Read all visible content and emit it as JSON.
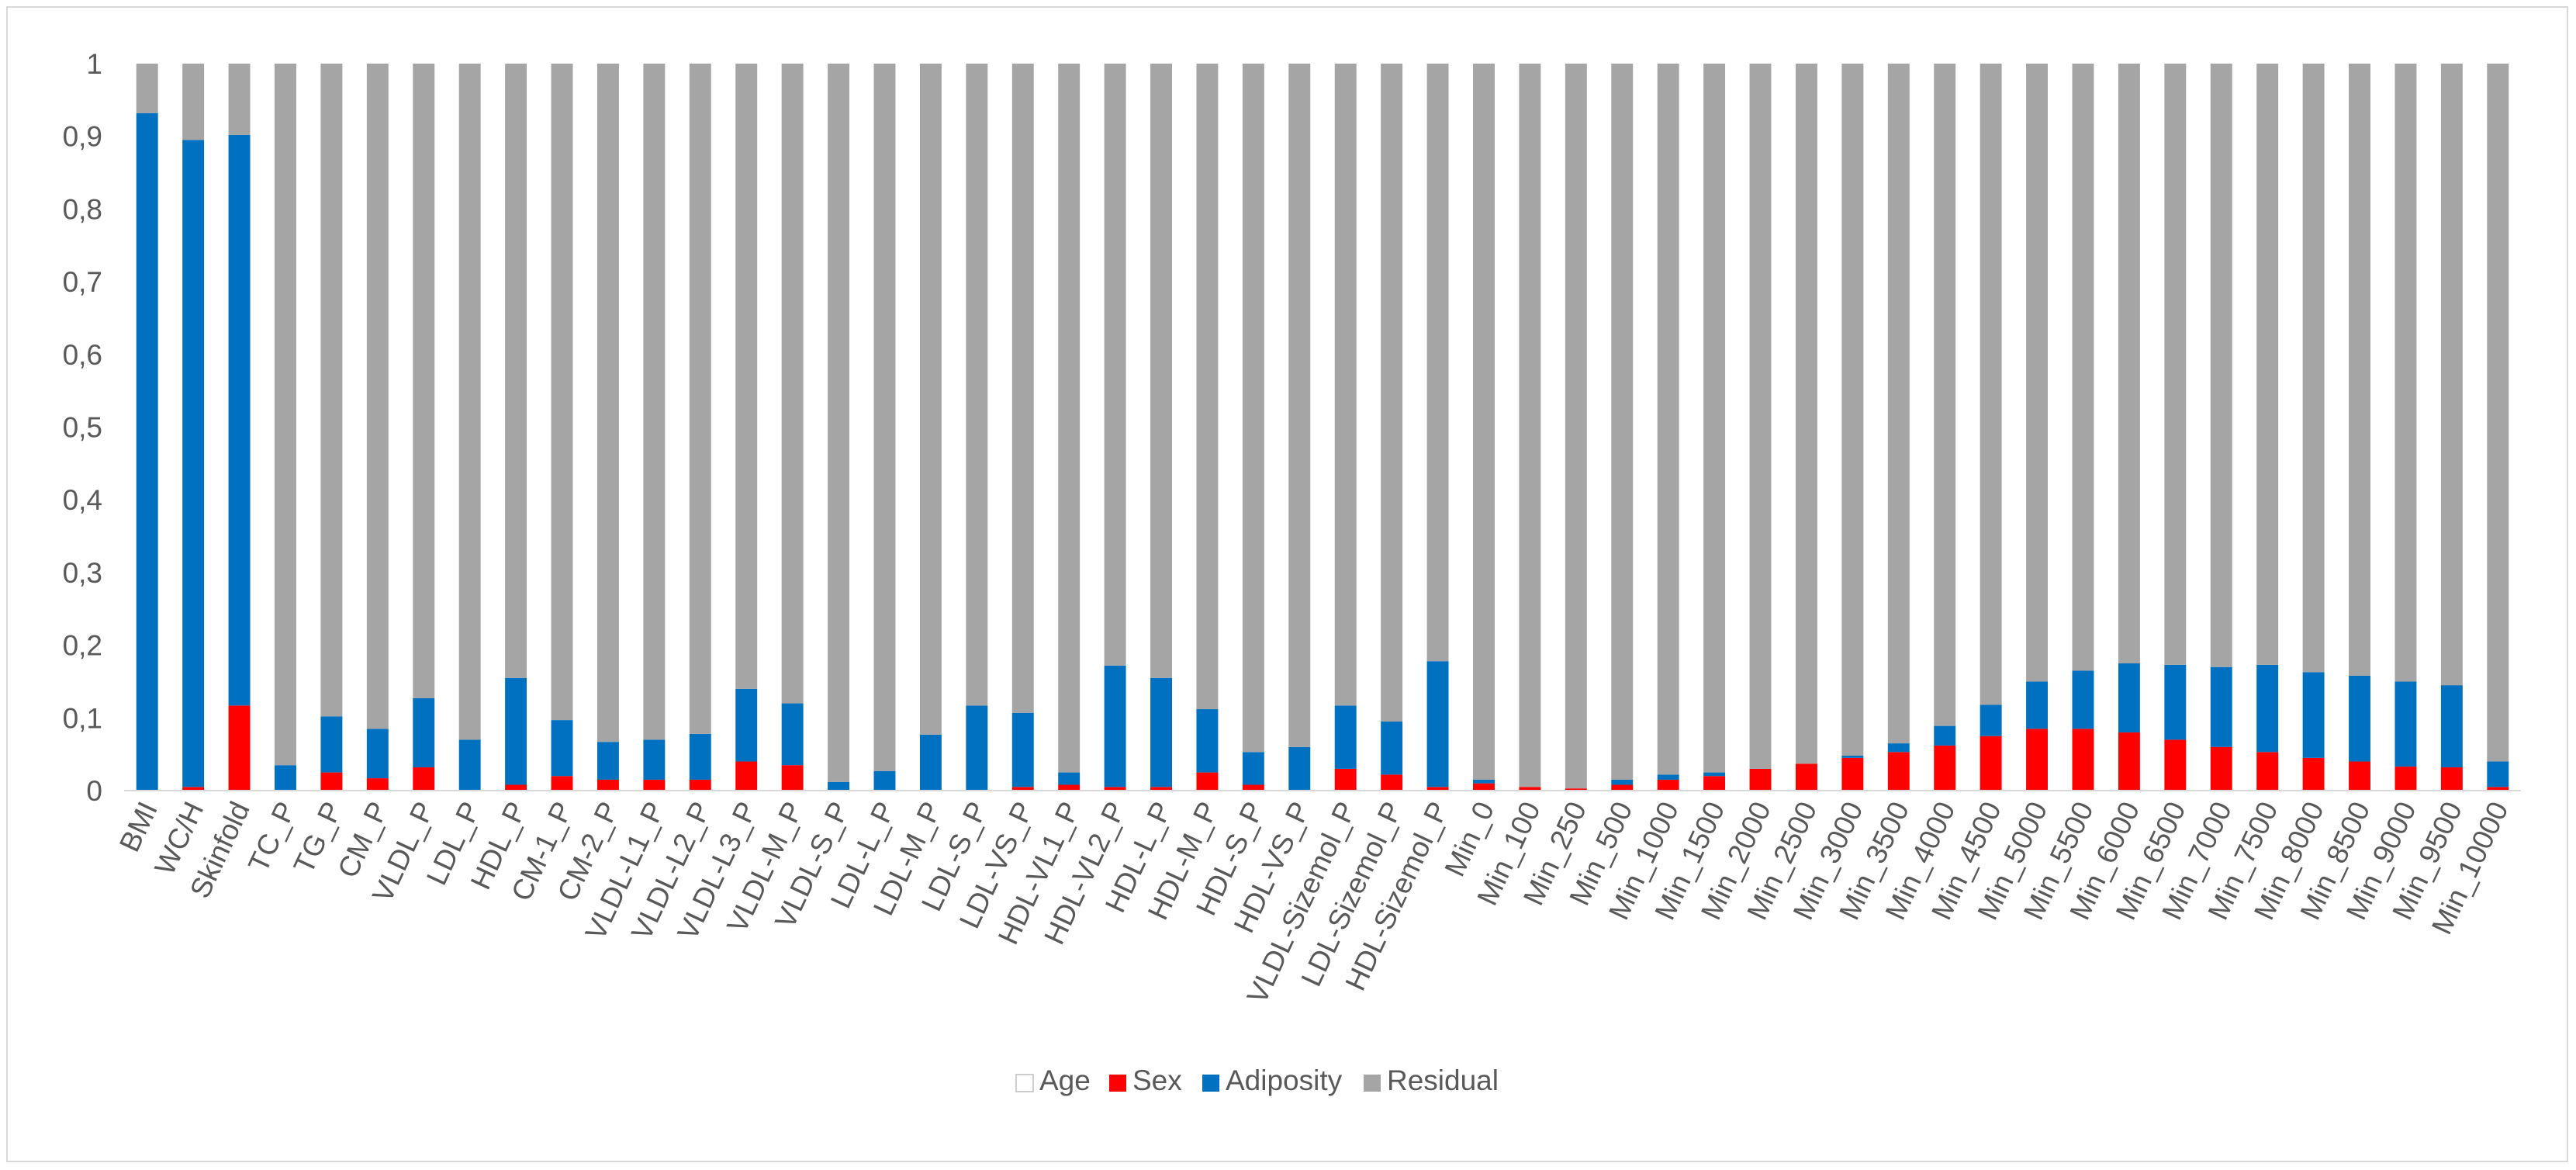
{
  "chart_data": {
    "type": "bar",
    "stacked": true,
    "ylim": [
      0,
      1
    ],
    "yticks": [
      0,
      0.1,
      0.2,
      0.3,
      0.4,
      0.5,
      0.6,
      0.7,
      0.8,
      0.9,
      1
    ],
    "ytick_labels": [
      "0",
      "0,1",
      "0,2",
      "0,3",
      "0,4",
      "0,5",
      "0,6",
      "0,7",
      "0,8",
      "0,9",
      "1"
    ],
    "grid": false,
    "legend_position": "bottom",
    "categories": [
      "BMI",
      "WC/H",
      "Skinfold",
      "TC_P",
      "TG_P",
      "CM_P",
      "VLDL_P",
      "LDL_P",
      "HDL_P",
      "CM-1_P",
      "CM-2_P",
      "VLDL-L1_P",
      "VLDL-L2_P",
      "VLDL-L3_P",
      "VLDL-M_P",
      "VLDL-S_P",
      "LDL-L_P",
      "LDL-M_P",
      "LDL-S_P",
      "LDL-VS_P",
      "HDL-VL1_P",
      "HDL-VL2_P",
      "HDL-L_P",
      "HDL-M_P",
      "HDL-S_P",
      "HDL-VS_P",
      "VLDL-Sizemol_P",
      "LDL-Sizemol_P",
      "HDL-Sizemol_P",
      "Min_0",
      "Min_100",
      "Min_250",
      "Min_500",
      "Min_1000",
      "Min_1500",
      "Min_2000",
      "Min_2500",
      "Min_3000",
      "Min_3500",
      "Min_4000",
      "Min_4500",
      "Min_5000",
      "Min_5500",
      "Min_6000",
      "Min_6500",
      "Min_7000",
      "Min_7500",
      "Min_8000",
      "Min_8500",
      "Min_9000",
      "Min_9500",
      "Min_10000"
    ],
    "series": [
      {
        "name": "Age",
        "color": "#ffffff",
        "values": [
          0,
          0,
          0,
          0,
          0,
          0,
          0,
          0,
          0,
          0,
          0,
          0,
          0,
          0,
          0,
          0,
          0,
          0,
          0,
          0,
          0,
          0,
          0,
          0,
          0,
          0,
          0,
          0,
          0,
          0,
          0,
          0,
          0,
          0,
          0,
          0,
          0,
          0,
          0,
          0,
          0,
          0,
          0,
          0,
          0,
          0,
          0,
          0,
          0,
          0,
          0,
          0
        ]
      },
      {
        "name": "Sex",
        "color": "#ff0000",
        "values": [
          0,
          0.005,
          0.117,
          0,
          0.025,
          0.017,
          0.032,
          0,
          0.008,
          0.02,
          0.015,
          0.015,
          0.015,
          0.04,
          0.035,
          0,
          0,
          0,
          0,
          0.005,
          0.008,
          0.005,
          0.005,
          0.025,
          0.008,
          0,
          0.03,
          0.022,
          0.005,
          0.01,
          0.005,
          0.003,
          0.008,
          0.015,
          0.02,
          0.03,
          0.037,
          0.045,
          0.053,
          0.062,
          0.075,
          0.085,
          0.085,
          0.08,
          0.07,
          0.06,
          0.053,
          0.045,
          0.04,
          0.033,
          0.032,
          0.005
        ]
      },
      {
        "name": "Adiposity",
        "color": "#0070c0",
        "values": [
          0.932,
          0.89,
          0.785,
          0.035,
          0.077,
          0.068,
          0.095,
          0.07,
          0.147,
          0.077,
          0.052,
          0.055,
          0.063,
          0.1,
          0.085,
          0.012,
          0.027,
          0.077,
          0.117,
          0.102,
          0.017,
          0.167,
          0.15,
          0.087,
          0.045,
          0.06,
          0.087,
          0.073,
          0.173,
          0.005,
          0,
          0,
          0.007,
          0.007,
          0.005,
          0,
          0,
          0.003,
          0.012,
          0.027,
          0.043,
          0.065,
          0.08,
          0.095,
          0.103,
          0.11,
          0.12,
          0.118,
          0.118,
          0.117,
          0.113,
          0.035
        ]
      },
      {
        "name": "Residual",
        "color": "#a5a5a5",
        "values": [
          0.068,
          0.105,
          0.098,
          0.965,
          0.898,
          0.915,
          0.873,
          0.93,
          0.845,
          0.903,
          0.933,
          0.93,
          0.922,
          0.86,
          0.88,
          0.988,
          0.973,
          0.923,
          0.883,
          0.893,
          0.975,
          0.828,
          0.845,
          0.888,
          0.947,
          0.94,
          0.883,
          0.905,
          0.822,
          0.985,
          0.995,
          0.997,
          0.985,
          0.978,
          0.975,
          0.97,
          0.963,
          0.952,
          0.935,
          0.911,
          0.882,
          0.85,
          0.835,
          0.825,
          0.827,
          0.83,
          0.827,
          0.837,
          0.842,
          0.85,
          0.855,
          0.96
        ]
      }
    ]
  }
}
